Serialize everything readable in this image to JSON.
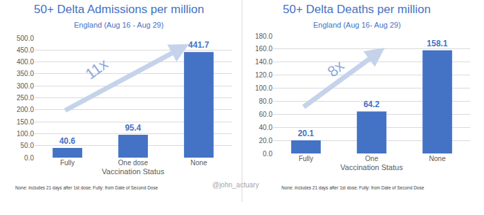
{
  "chart_data": [
    {
      "type": "bar",
      "title": "50+ Delta Admissions per million",
      "subtitle": "England (Aug 16 - Aug 29)",
      "xlabel": "Vaccination Status",
      "categories": [
        "Fully",
        "One dose",
        "None"
      ],
      "values": [
        40.6,
        95.4,
        441.7
      ],
      "color": "#4472c4",
      "data_labels": true,
      "ylim": [
        0,
        500
      ],
      "yticks": [
        {
          "value": 0,
          "label": "0.0"
        },
        {
          "value": 50,
          "label": "50.0"
        },
        {
          "value": 100,
          "label": "100.0"
        },
        {
          "value": 150,
          "label": "150.0"
        },
        {
          "value": 200,
          "label": "200.0"
        },
        {
          "value": 250,
          "label": "250.0"
        },
        {
          "value": 300,
          "label": "300.0"
        },
        {
          "value": 350,
          "label": "350.0"
        },
        {
          "value": 400,
          "label": "400.0"
        },
        {
          "value": 450,
          "label": "450.0"
        },
        {
          "value": 500,
          "label": "500.0"
        }
      ],
      "grid": true,
      "arrow_label": "11x",
      "footnote": "None: includes 21 days after 1st dose; Fully: from Date of Second Dose"
    },
    {
      "type": "bar",
      "title": "50+ Delta Deaths per million",
      "subtitle": "England (Aug 16- Aug 29)",
      "xlabel": "Vaccination Status",
      "categories": [
        "Fully",
        "One",
        "None"
      ],
      "values": [
        20.1,
        64.2,
        158.1
      ],
      "color": "#4472c4",
      "data_labels": true,
      "ylim": [
        0,
        180
      ],
      "yticks": [
        {
          "value": 0,
          "label": "0.0"
        },
        {
          "value": 20,
          "label": "20.0"
        },
        {
          "value": 40,
          "label": "40.0"
        },
        {
          "value": 60,
          "label": "60.0"
        },
        {
          "value": 80,
          "label": "80.0"
        },
        {
          "value": 100,
          "label": "100.0"
        },
        {
          "value": 120,
          "label": "120.0"
        },
        {
          "value": 140,
          "label": "140.0"
        },
        {
          "value": 160,
          "label": "160.0"
        },
        {
          "value": 180,
          "label": "180.0"
        }
      ],
      "grid": true,
      "arrow_label": "8x",
      "footnote": "None: includes 21 days after 1st dose; Fully: from Date of Second Dose",
      "watermark": "@john_actuary"
    }
  ]
}
